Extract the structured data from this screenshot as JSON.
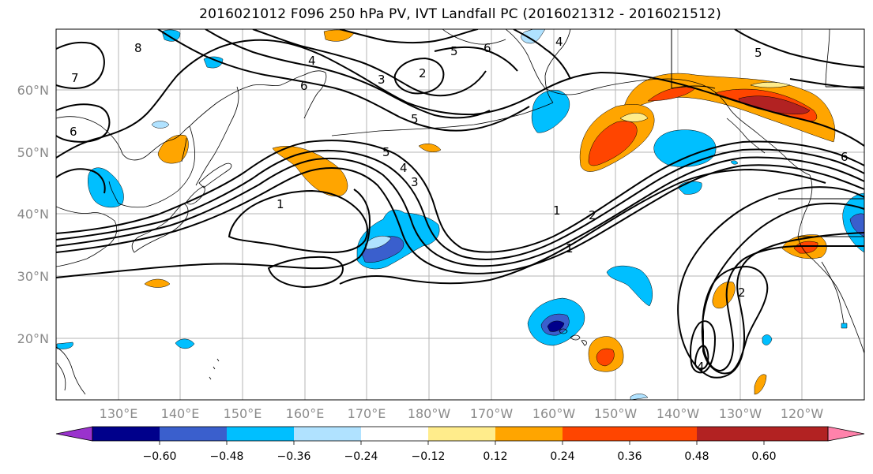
{
  "title": "2016021012 F096 250 hPa PV, IVT Landfall PC (2016021312 - 2016021512)",
  "lat_labels": [
    "60°N",
    "50°N",
    "40°N",
    "30°N",
    "20°N"
  ],
  "lon_labels": [
    "130°E",
    "140°E",
    "150°E",
    "160°E",
    "170°E",
    "180°W",
    "170°W",
    "160°W",
    "150°W",
    "140°W",
    "130°W",
    "120°W"
  ],
  "colorbar": {
    "colors": [
      "#9a32cd",
      "#00008b",
      "#3a5fcd",
      "#00bfff",
      "#b0e2ff",
      "#ffffff",
      "#ffec8b",
      "#ffa500",
      "#ff4500",
      "#b22222",
      "#ff82ab"
    ],
    "tick_labels": [
      "−0.60",
      "−0.48",
      "−0.36",
      "−0.24",
      "−0.12",
      "0.12",
      "0.24",
      "0.36",
      "0.48",
      "0.60"
    ]
  },
  "contour_labels": [
    "8",
    "7",
    "6",
    "4",
    "6",
    "5",
    "4",
    "3",
    "2",
    "5",
    "6",
    "5",
    "4",
    "3",
    "1",
    "1",
    "2",
    "1",
    "5",
    "6",
    "2",
    "4"
  ]
}
